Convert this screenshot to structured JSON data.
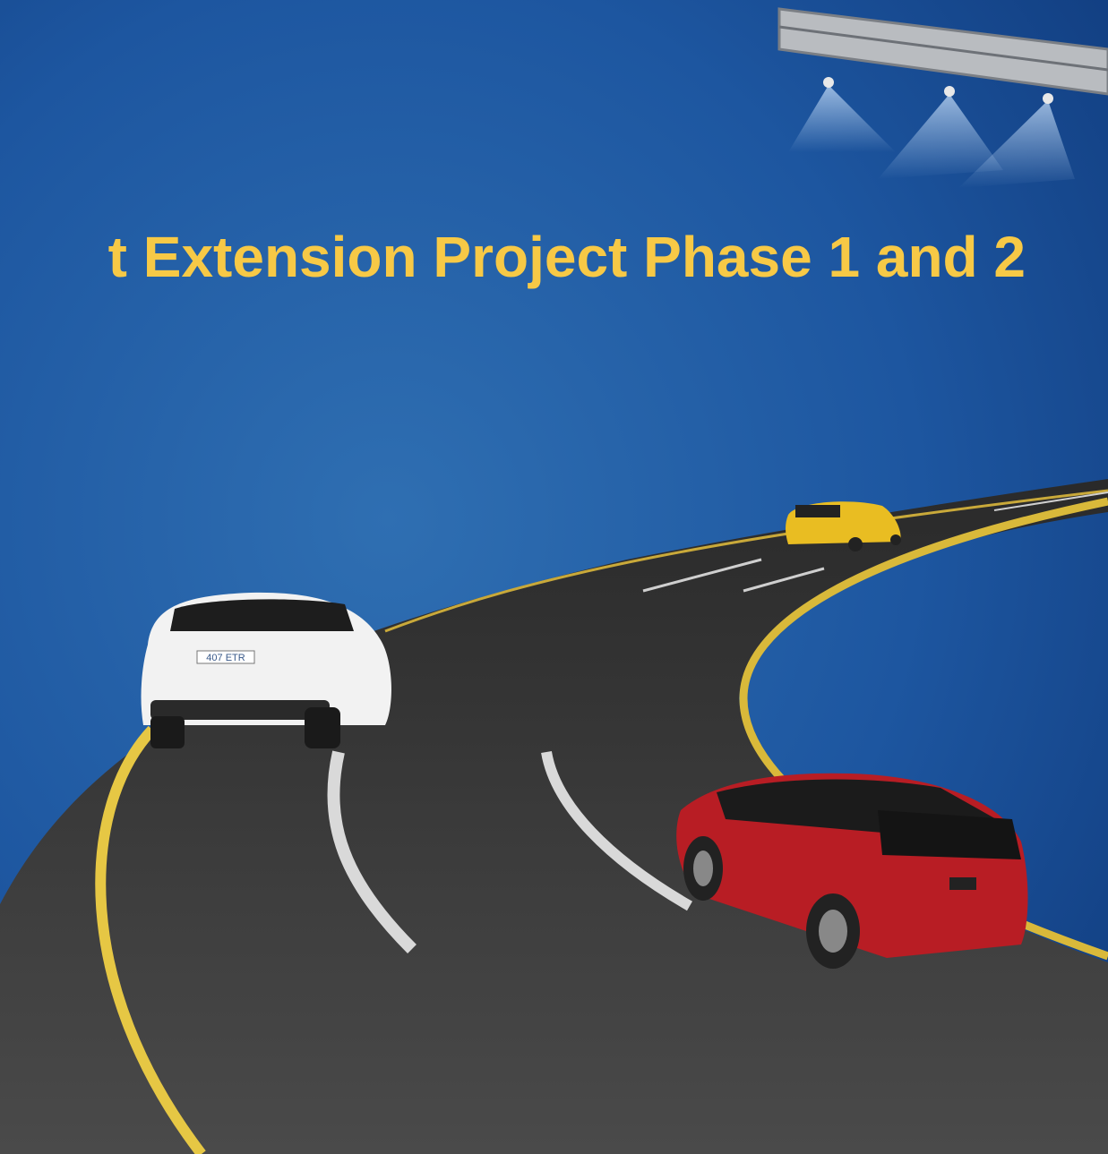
{
  "header": {
    "title": "t Extension Project Phase 1 and 2"
  },
  "plate": "407 ETR"
}
